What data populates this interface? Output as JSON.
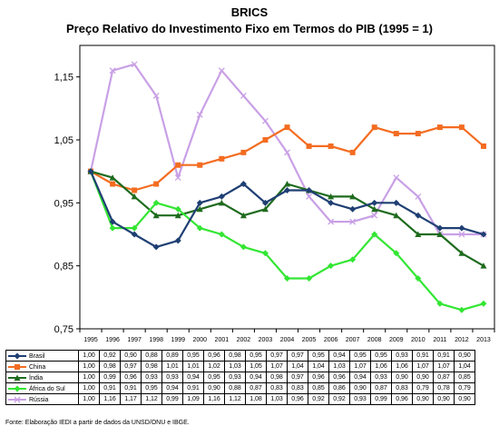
{
  "chart_data": {
    "type": "line",
    "title": "BRICS",
    "subtitle": "Preço Relativo do Investimento Fixo em Termos do PIB (1995 = 1)",
    "categories": [
      "1995",
      "1996",
      "1997",
      "1998",
      "1999",
      "2000",
      "2001",
      "2002",
      "2003",
      "2004",
      "2005",
      "2006",
      "2007",
      "2008",
      "2009",
      "2010",
      "2011",
      "2012",
      "2013"
    ],
    "ylim": [
      0.75,
      1.2
    ],
    "yticks": [
      0.75,
      0.85,
      0.95,
      1.05,
      1.15
    ],
    "ytick_labels": [
      "0,75",
      "0,85",
      "0,95",
      "1,05",
      "1,15"
    ],
    "legend_position": "table-bottom",
    "series": [
      {
        "name": "Brasil",
        "color": "#1f3f73",
        "marker": "diamond",
        "values": [
          1.0,
          0.92,
          0.9,
          0.88,
          0.89,
          0.95,
          0.96,
          0.98,
          0.95,
          0.97,
          0.97,
          0.95,
          0.94,
          0.95,
          0.95,
          0.93,
          0.91,
          0.91,
          0.9
        ],
        "labels": [
          "1,00",
          "0,92",
          "0,90",
          "0,88",
          "0,89",
          "0,95",
          "0,96",
          "0,98",
          "0,95",
          "0,97",
          "0,97",
          "0,95",
          "0,94",
          "0,95",
          "0,95",
          "0,93",
          "0,91",
          "0,91",
          "0,90"
        ]
      },
      {
        "name": "China",
        "color": "#f36c21",
        "marker": "square",
        "values": [
          1.0,
          0.98,
          0.97,
          0.98,
          1.01,
          1.01,
          1.02,
          1.03,
          1.05,
          1.07,
          1.04,
          1.04,
          1.03,
          1.07,
          1.06,
          1.06,
          1.07,
          1.07,
          1.04
        ],
        "labels": [
          "1,00",
          "0,98",
          "0,97",
          "0,98",
          "1,01",
          "1,01",
          "1,02",
          "1,03",
          "1,05",
          "1,07",
          "1,04",
          "1,04",
          "1,03",
          "1,07",
          "1,06",
          "1,06",
          "1,07",
          "1,07",
          "1,04"
        ]
      },
      {
        "name": "Índia",
        "color": "#1e6b1e",
        "marker": "triangle",
        "values": [
          1.0,
          0.99,
          0.96,
          0.93,
          0.93,
          0.94,
          0.95,
          0.93,
          0.94,
          0.98,
          0.97,
          0.96,
          0.96,
          0.94,
          0.93,
          0.9,
          0.9,
          0.87,
          0.85
        ],
        "labels": [
          "1,00",
          "0,99",
          "0,96",
          "0,93",
          "0,93",
          "0,94",
          "0,95",
          "0,93",
          "0,94",
          "0,98",
          "0,97",
          "0,96",
          "0,96",
          "0,94",
          "0,93",
          "0,90",
          "0,90",
          "0,87",
          "0,85"
        ]
      },
      {
        "name": "África do Sul",
        "color": "#33e633",
        "marker": "diamond",
        "values": [
          1.0,
          0.91,
          0.91,
          0.95,
          0.94,
          0.91,
          0.9,
          0.88,
          0.87,
          0.83,
          0.83,
          0.85,
          0.86,
          0.9,
          0.87,
          0.83,
          0.79,
          0.78,
          0.79
        ],
        "labels": [
          "1,00",
          "0,91",
          "0,91",
          "0,95",
          "0,94",
          "0,91",
          "0,90",
          "0,88",
          "0,87",
          "0,83",
          "0,83",
          "0,85",
          "0,86",
          "0,90",
          "0,87",
          "0,83",
          "0,79",
          "0,78",
          "0,79"
        ]
      },
      {
        "name": "Rússia",
        "color": "#c9a0e6",
        "marker": "x",
        "values": [
          1.0,
          1.16,
          1.17,
          1.12,
          0.99,
          1.09,
          1.16,
          1.12,
          1.08,
          1.03,
          0.96,
          0.92,
          0.92,
          0.93,
          0.99,
          0.96,
          0.9,
          0.9,
          0.9
        ],
        "labels": [
          "1,00",
          "1,16",
          "1,17",
          "1,12",
          "0,99",
          "1,09",
          "1,16",
          "1,12",
          "1,08",
          "1,03",
          "0,96",
          "0,92",
          "0,92",
          "0,93",
          "0,99",
          "0,96",
          "0,90",
          "0,90",
          "0,90"
        ]
      }
    ],
    "source": "Fonte: Elaboração IEDI a partir de dados da UNSD/ONU e IBGE."
  }
}
